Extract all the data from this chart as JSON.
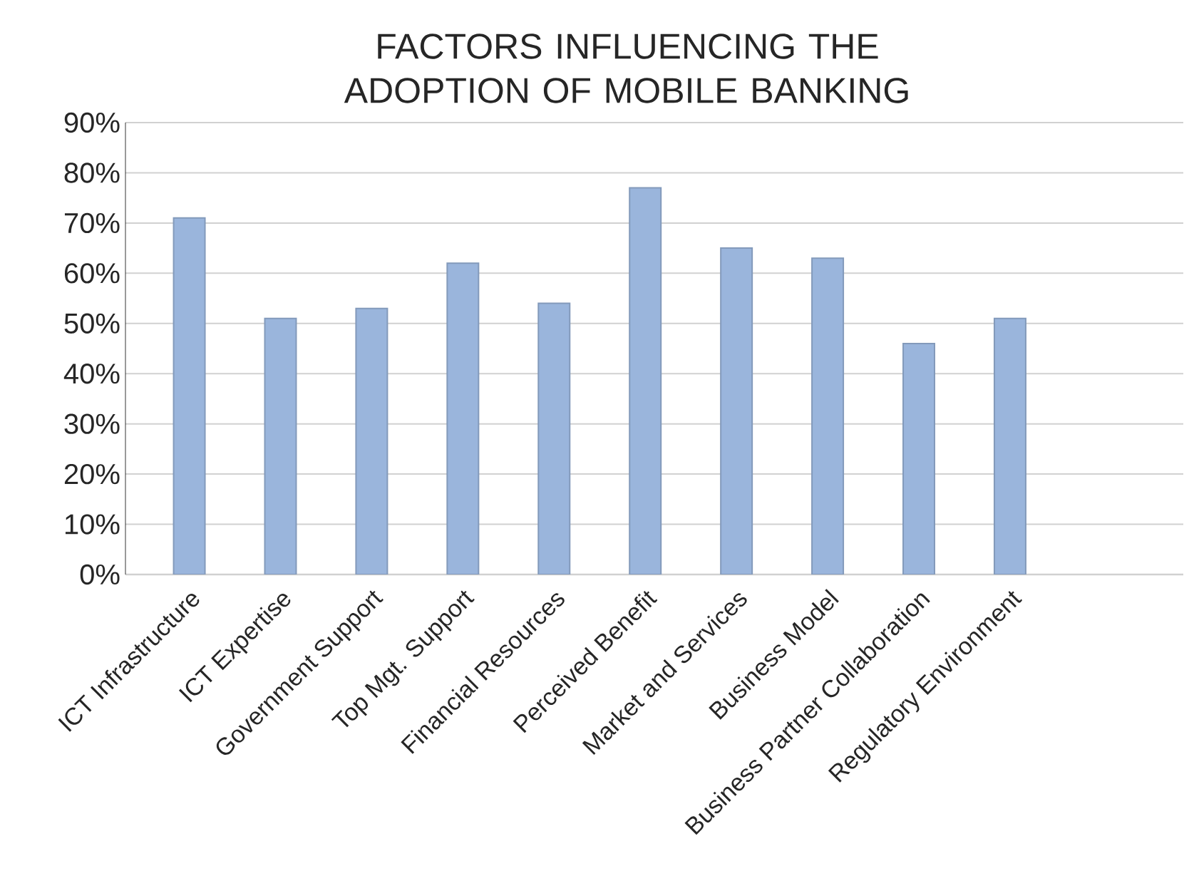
{
  "chart_data": {
    "type": "bar",
    "title": "FACTORS INFLUENCING THE ADOPTION OF MOBILE BANKING",
    "categories": [
      "ICT Infrastructure",
      "ICT Expertise",
      "Government Support",
      "Top Mgt. Support",
      "Financial Resources",
      "Perceived Benefit",
      "Market and Services",
      "Business Model",
      "Business Partner Collaboration",
      "Regulatory Environment"
    ],
    "values": [
      71,
      51,
      53,
      62,
      54,
      77,
      65,
      63,
      46,
      51
    ],
    "color": "#9ab5dc",
    "ylim": [
      0,
      90
    ],
    "yticks": [
      {
        "value": 0,
        "label": "0%"
      },
      {
        "value": 10,
        "label": "10%"
      },
      {
        "value": 20,
        "label": "20%"
      },
      {
        "value": 30,
        "label": "30%"
      },
      {
        "value": 40,
        "label": "40%"
      },
      {
        "value": 50,
        "label": "50%"
      },
      {
        "value": 60,
        "label": "60%"
      },
      {
        "value": 70,
        "label": "70%"
      },
      {
        "value": 80,
        "label": "80%"
      },
      {
        "value": 90,
        "label": "90%"
      }
    ],
    "grid": "y"
  }
}
